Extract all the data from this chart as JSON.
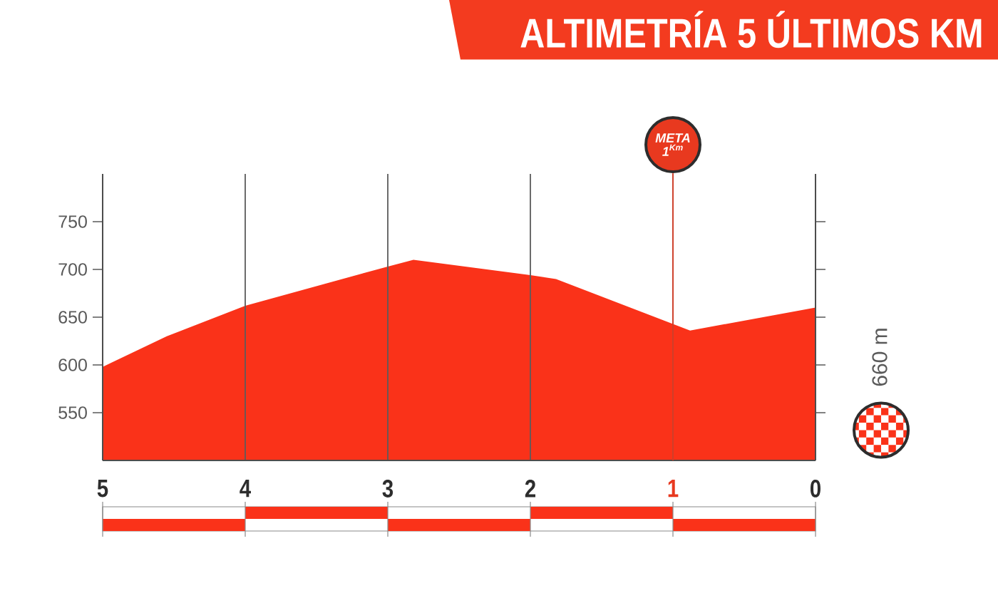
{
  "chart_data": {
    "type": "area",
    "title": "ALTIMETRÍA 5 ÚLTIMOS KM",
    "x": [
      5,
      4.55,
      4,
      3,
      2.82,
      2,
      1.82,
      0.88,
      0
    ],
    "values": [
      598,
      630,
      662,
      703,
      710,
      694,
      690,
      636,
      660
    ],
    "color": "#fa3219",
    "xlim": [
      5,
      0
    ],
    "xticks": [
      5,
      4,
      3,
      2,
      1,
      0
    ],
    "ylim": [
      500,
      800
    ],
    "yticks": [
      550,
      600,
      650,
      700,
      750
    ],
    "grid": "x",
    "ref_lines": [
      {
        "axis": "x",
        "value": 1,
        "label": "META 1$^{Km}$",
        "color": "#e8391f"
      }
    ],
    "annotations": [
      "660 m"
    ]
  }
}
